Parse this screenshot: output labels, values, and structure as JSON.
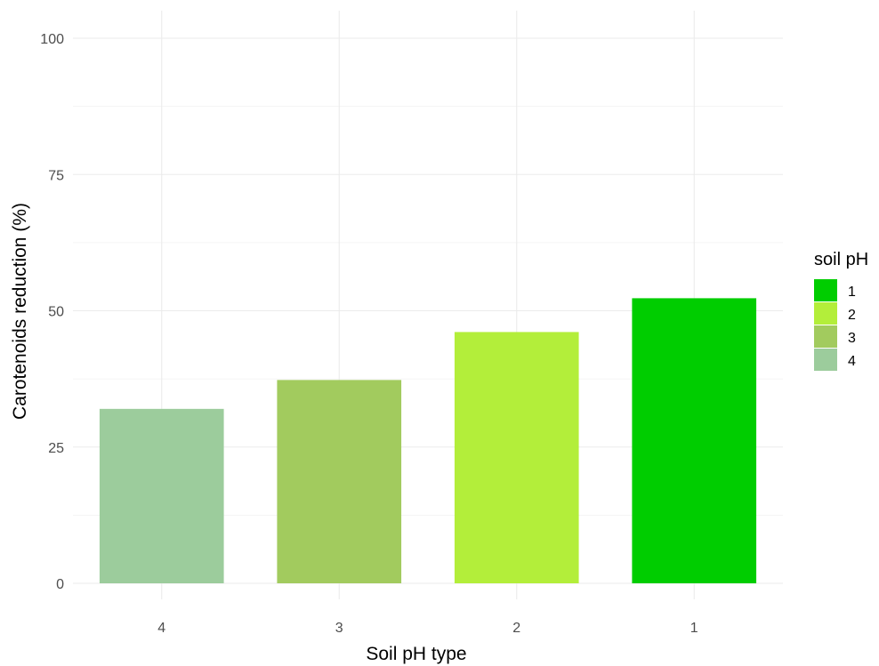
{
  "chart_data": {
    "type": "bar",
    "title": "",
    "xlabel": "Soil pH type",
    "ylabel": "Carotenoids reduction (%)",
    "ylim": [
      0,
      100
    ],
    "yticks": [
      "0",
      "25",
      "50",
      "75",
      "100"
    ],
    "categories": [
      "4",
      "3",
      "2",
      "1"
    ],
    "values": [
      32,
      37.3,
      46.1,
      52.3
    ],
    "colors": [
      "#9ccc9c",
      "#a2cb5e",
      "#b3ee3a",
      "#00cd00"
    ],
    "grid": true,
    "legend": {
      "title": "soil pH",
      "position": "right",
      "items": [
        {
          "label": "1",
          "color": "#00cd00"
        },
        {
          "label": "2",
          "color": "#b3ee3a"
        },
        {
          "label": "3",
          "color": "#a2cb5e"
        },
        {
          "label": "4",
          "color": "#9ccc9c"
        }
      ]
    }
  }
}
